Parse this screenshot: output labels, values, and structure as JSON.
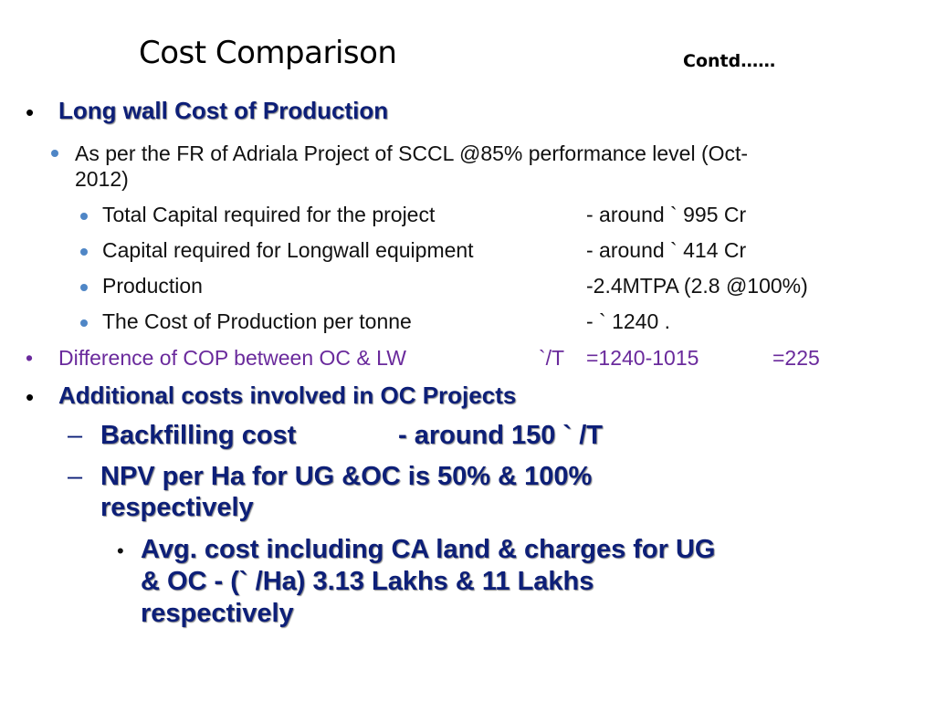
{
  "title": "Cost Comparison",
  "contd": "Contd……",
  "bullet_char": "•",
  "dash_char": "–",
  "section1": {
    "heading": "Long wall Cost of Production",
    "intro_line1": "As per the FR of Adriala Project of SCCL @85% performance level (Oct-",
    "intro_line2": "2012)",
    "items": [
      {
        "label": "Total Capital required for  the project",
        "value": "- around  ` 995 Cr"
      },
      {
        "label": "Capital required for  Longwall equipment",
        "value": "- around  ` 414 Cr"
      },
      {
        "label": "Production",
        "value": "-2.4MTPA (2.8 @100%)"
      },
      {
        "label": "The Cost of Production per tonne",
        "value": "- ` 1240 ."
      }
    ]
  },
  "difference": {
    "label": "Difference of COP  between  OC & LW",
    "unit": "`/T",
    "calc": "=1240-1015",
    "result": "=225"
  },
  "section2": {
    "heading": "Additional costs involved  in  OC Projects",
    "backfilling_label": "Backfilling cost",
    "backfilling_value": "-  around 150 ` /T",
    "npv_line1": "NPV  per Ha for UG &OC  is 50% & 100%",
    "npv_line2": "respectively",
    "avg_line1": "Avg. cost  including CA land & charges for UG",
    "avg_line2": "& OC - (` /Ha) 3.13 Lakhs & 11 Lakhs",
    "avg_line3": "respectively"
  }
}
